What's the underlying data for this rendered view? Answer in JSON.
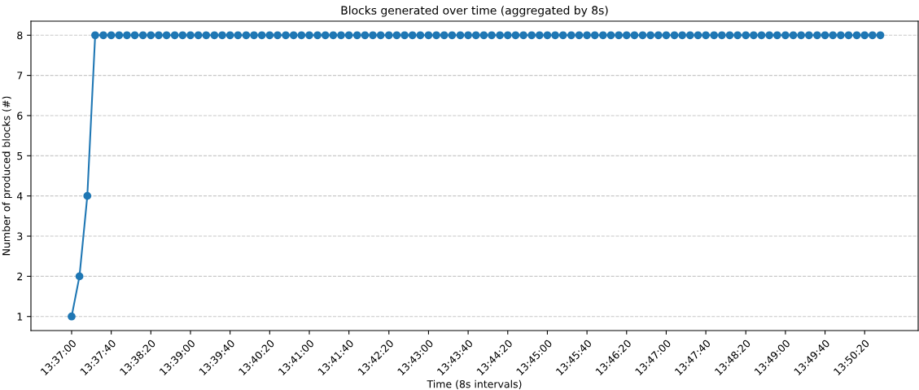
{
  "chart_data": {
    "type": "line",
    "title": "Blocks generated over time (aggregated by 8s)",
    "xlabel": "Time (8s intervals)",
    "ylabel": "Number of produced blocks (#)",
    "x": [
      13.6167,
      13.6189,
      13.6211,
      13.6233,
      13.6256,
      13.6278,
      13.63,
      13.6322,
      13.6344,
      13.6367,
      13.6389,
      13.6411,
      13.6433,
      13.6456,
      13.6478,
      13.65,
      13.6522,
      13.6544,
      13.6567,
      13.6589,
      13.6611,
      13.6633,
      13.6656,
      13.6678,
      13.67,
      13.6722,
      13.6744,
      13.6767,
      13.6789,
      13.6811,
      13.6833,
      13.6856,
      13.6878,
      13.69,
      13.6922,
      13.6944,
      13.6967,
      13.6989,
      13.7011,
      13.7033,
      13.7056,
      13.7078,
      13.71,
      13.7122,
      13.7144,
      13.7167,
      13.7189,
      13.7211,
      13.7233,
      13.7256,
      13.7278,
      13.73,
      13.7322,
      13.7344,
      13.7367,
      13.7389,
      13.7411,
      13.7433,
      13.7456,
      13.7478,
      13.75,
      13.7522,
      13.7544,
      13.7567,
      13.7589,
      13.7611,
      13.7633,
      13.7656,
      13.7678,
      13.77,
      13.7722,
      13.7744,
      13.7767,
      13.7789,
      13.7811,
      13.7833,
      13.7856,
      13.7878,
      13.79,
      13.7922,
      13.7944,
      13.7967,
      13.7989,
      13.8011,
      13.8033,
      13.8056,
      13.8078,
      13.81,
      13.8122,
      13.8144,
      13.8167,
      13.8189,
      13.8211,
      13.8233,
      13.8256,
      13.8278,
      13.83,
      13.8322,
      13.8344,
      13.8367,
      13.8389,
      13.8411,
      13.8433
    ],
    "values": [
      1,
      2,
      4,
      8,
      8,
      8,
      8,
      8,
      8,
      8,
      8,
      8,
      8,
      8,
      8,
      8,
      8,
      8,
      8,
      8,
      8,
      8,
      8,
      8,
      8,
      8,
      8,
      8,
      8,
      8,
      8,
      8,
      8,
      8,
      8,
      8,
      8,
      8,
      8,
      8,
      8,
      8,
      8,
      8,
      8,
      8,
      8,
      8,
      8,
      8,
      8,
      8,
      8,
      8,
      8,
      8,
      8,
      8,
      8,
      8,
      8,
      8,
      8,
      8,
      8,
      8,
      8,
      8,
      8,
      8,
      8,
      8,
      8,
      8,
      8,
      8,
      8,
      8,
      8,
      8,
      8,
      8,
      8,
      8,
      8,
      8,
      8,
      8,
      8,
      8,
      8,
      8,
      8,
      8,
      8,
      8,
      8,
      8,
      8,
      8,
      8,
      8,
      8
    ],
    "color": "#1f77b4",
    "marker": "circle",
    "line_style": "solid",
    "xlim": [
      13.6053,
      13.8539
    ],
    "xticks": [
      {
        "value": 13.6167,
        "label": "13:37:00"
      },
      {
        "value": 13.6278,
        "label": "13:37:40"
      },
      {
        "value": 13.6389,
        "label": "13:38:20"
      },
      {
        "value": 13.65,
        "label": "13:39:00"
      },
      {
        "value": 13.6611,
        "label": "13:39:40"
      },
      {
        "value": 13.6722,
        "label": "13:40:20"
      },
      {
        "value": 13.6833,
        "label": "13:41:00"
      },
      {
        "value": 13.6944,
        "label": "13:41:40"
      },
      {
        "value": 13.7056,
        "label": "13:42:20"
      },
      {
        "value": 13.7167,
        "label": "13:43:00"
      },
      {
        "value": 13.7278,
        "label": "13:43:40"
      },
      {
        "value": 13.7389,
        "label": "13:44:20"
      },
      {
        "value": 13.75,
        "label": "13:45:00"
      },
      {
        "value": 13.7611,
        "label": "13:45:40"
      },
      {
        "value": 13.7722,
        "label": "13:46:20"
      },
      {
        "value": 13.7833,
        "label": "13:47:00"
      },
      {
        "value": 13.7944,
        "label": "13:47:40"
      },
      {
        "value": 13.8056,
        "label": "13:48:20"
      },
      {
        "value": 13.8167,
        "label": "13:49:00"
      },
      {
        "value": 13.8278,
        "label": "13:49:40"
      },
      {
        "value": 13.8389,
        "label": "13:50:20"
      }
    ],
    "ylim": [
      0.65,
      8.35
    ],
    "yticks": [
      1,
      2,
      3,
      4,
      5,
      6,
      7,
      8
    ],
    "grid": "y"
  }
}
